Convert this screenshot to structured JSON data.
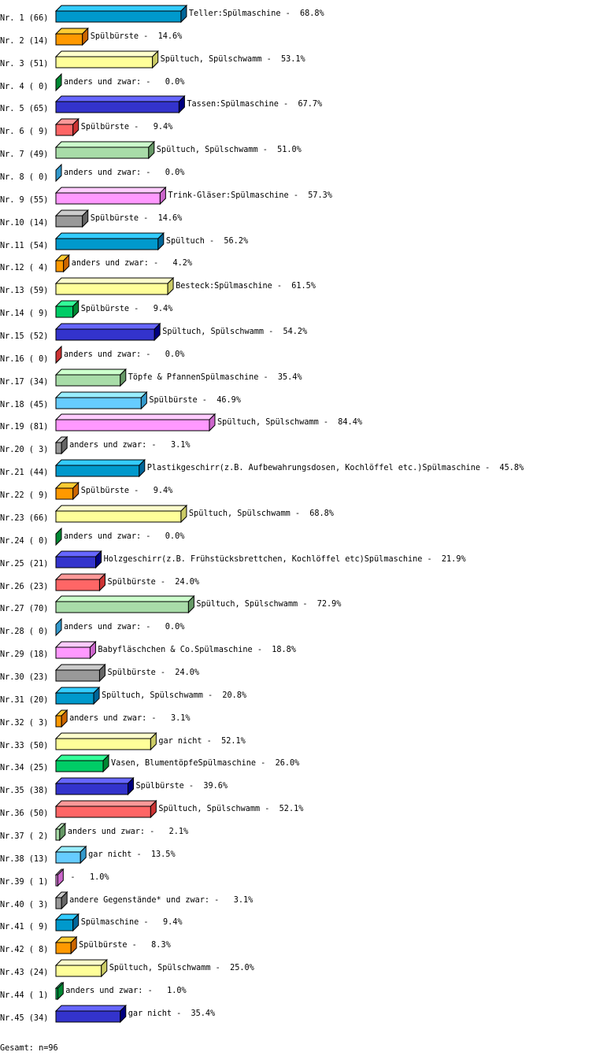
{
  "chart_data": {
    "type": "bar",
    "orientation": "horizontal",
    "style": "3d",
    "unit": "%",
    "grid": false,
    "rows": [
      {
        "nr": "Nr. 1",
        "n": 66,
        "label": "Teller:Spülmaschine",
        "pct": 68.8
      },
      {
        "nr": "Nr. 2",
        "n": 14,
        "label": "Spülbürste",
        "pct": 14.6
      },
      {
        "nr": "Nr. 3",
        "n": 51,
        "label": "Spültuch, Spülschwamm",
        "pct": 53.1
      },
      {
        "nr": "Nr. 4",
        "n": 0,
        "label": "anders und zwar:",
        "pct": 0.0
      },
      {
        "nr": "Nr. 5",
        "n": 65,
        "label": "Tassen:Spülmaschine",
        "pct": 67.7
      },
      {
        "nr": "Nr. 6",
        "n": 9,
        "label": "Spülbürste",
        "pct": 9.4
      },
      {
        "nr": "Nr. 7",
        "n": 49,
        "label": "Spültuch, Spülschwamm",
        "pct": 51.0
      },
      {
        "nr": "Nr. 8",
        "n": 0,
        "label": "anders und zwar:",
        "pct": 0.0
      },
      {
        "nr": "Nr. 9",
        "n": 55,
        "label": "Trink-Gläser:Spülmaschine",
        "pct": 57.3
      },
      {
        "nr": "Nr.10",
        "n": 14,
        "label": "Spülbürste",
        "pct": 14.6
      },
      {
        "nr": "Nr.11",
        "n": 54,
        "label": "Spültuch",
        "pct": 56.2
      },
      {
        "nr": "Nr.12",
        "n": 4,
        "label": "anders und zwar:",
        "pct": 4.2
      },
      {
        "nr": "Nr.13",
        "n": 59,
        "label": "Besteck:Spülmaschine",
        "pct": 61.5
      },
      {
        "nr": "Nr.14",
        "n": 9,
        "label": "Spülbürste",
        "pct": 9.4
      },
      {
        "nr": "Nr.15",
        "n": 52,
        "label": "Spültuch, Spülschwamm",
        "pct": 54.2
      },
      {
        "nr": "Nr.16",
        "n": 0,
        "label": "anders und zwar:",
        "pct": 0.0
      },
      {
        "nr": "Nr.17",
        "n": 34,
        "label": "Töpfe & PfannenSpülmaschine",
        "pct": 35.4
      },
      {
        "nr": "Nr.18",
        "n": 45,
        "label": "Spülbürste",
        "pct": 46.9
      },
      {
        "nr": "Nr.19",
        "n": 81,
        "label": "Spültuch, Spülschwamm",
        "pct": 84.4
      },
      {
        "nr": "Nr.20",
        "n": 3,
        "label": "anders und zwar:",
        "pct": 3.1
      },
      {
        "nr": "Nr.21",
        "n": 44,
        "label": "Plastikgeschirr(z.B. Aufbewahrungsdosen, Kochlöffel etc.)Spülmaschine",
        "pct": 45.8
      },
      {
        "nr": "Nr.22",
        "n": 9,
        "label": "Spülbürste",
        "pct": 9.4
      },
      {
        "nr": "Nr.23",
        "n": 66,
        "label": "Spültuch, Spülschwamm",
        "pct": 68.8
      },
      {
        "nr": "Nr.24",
        "n": 0,
        "label": "anders und zwar:",
        "pct": 0.0
      },
      {
        "nr": "Nr.25",
        "n": 21,
        "label": "Holzgeschirr(z.B. Frühstücksbrettchen, Kochlöffel etc)Spülmaschine",
        "pct": 21.9
      },
      {
        "nr": "Nr.26",
        "n": 23,
        "label": "Spülbürste",
        "pct": 24.0
      },
      {
        "nr": "Nr.27",
        "n": 70,
        "label": "Spültuch, Spülschwamm",
        "pct": 72.9
      },
      {
        "nr": "Nr.28",
        "n": 0,
        "label": "anders und zwar:",
        "pct": 0.0
      },
      {
        "nr": "Nr.29",
        "n": 18,
        "label": "Babyfläschchen & Co.Spülmaschine",
        "pct": 18.8
      },
      {
        "nr": "Nr.30",
        "n": 23,
        "label": "Spülbürste",
        "pct": 24.0
      },
      {
        "nr": "Nr.31",
        "n": 20,
        "label": "Spültuch, Spülschwamm",
        "pct": 20.8
      },
      {
        "nr": "Nr.32",
        "n": 3,
        "label": "anders und zwar:",
        "pct": 3.1
      },
      {
        "nr": "Nr.33",
        "n": 50,
        "label": "gar nicht",
        "pct": 52.1
      },
      {
        "nr": "Nr.34",
        "n": 25,
        "label": "Vasen, BlumentöpfeSpülmaschine",
        "pct": 26.0
      },
      {
        "nr": "Nr.35",
        "n": 38,
        "label": "Spülbürste",
        "pct": 39.6
      },
      {
        "nr": "Nr.36",
        "n": 50,
        "label": "Spültuch, Spülschwamm",
        "pct": 52.1
      },
      {
        "nr": "Nr.37",
        "n": 2,
        "label": "anders und zwar:",
        "pct": 2.1
      },
      {
        "nr": "Nr.38",
        "n": 13,
        "label": "gar nicht",
        "pct": 13.5
      },
      {
        "nr": "Nr.39",
        "n": 1,
        "label": "",
        "pct": 1.0
      },
      {
        "nr": "Nr.40",
        "n": 3,
        "label": "andere Gegenstände* und zwar:",
        "pct": 3.1
      },
      {
        "nr": "Nr.41",
        "n": 9,
        "label": "Spülmaschine",
        "pct": 9.4
      },
      {
        "nr": "Nr.42",
        "n": 8,
        "label": "Spülbürste",
        "pct": 8.3
      },
      {
        "nr": "Nr.43",
        "n": 24,
        "label": "Spültuch, Spülschwamm",
        "pct": 25.0
      },
      {
        "nr": "Nr.44",
        "n": 1,
        "label": "anders und zwar:",
        "pct": 1.0
      },
      {
        "nr": "Nr.45",
        "n": 34,
        "label": "gar nicht",
        "pct": 35.4
      }
    ],
    "palette": [
      {
        "front": "#0099cc",
        "top": "#33ccff",
        "side": "#006699"
      },
      {
        "front": "#ff9900",
        "top": "#ffcc33",
        "side": "#cc6600"
      },
      {
        "front": "#ffff99",
        "top": "#ffffcc",
        "side": "#cccc66"
      },
      {
        "front": "#00cc66",
        "top": "#33ff99",
        "side": "#008833"
      },
      {
        "front": "#3333cc",
        "top": "#6666ff",
        "side": "#000080"
      },
      {
        "front": "#ff6666",
        "top": "#ff9999",
        "side": "#cc3333"
      },
      {
        "front": "#a8dca8",
        "top": "#ccffcc",
        "side": "#669966"
      },
      {
        "front": "#66ccff",
        "top": "#99eeff",
        "side": "#3399cc"
      },
      {
        "front": "#ff99ff",
        "top": "#ffccff",
        "side": "#cc66cc"
      },
      {
        "front": "#999999",
        "top": "#cccccc",
        "side": "#666666"
      }
    ],
    "total_label": "Gesamt: n=96"
  }
}
